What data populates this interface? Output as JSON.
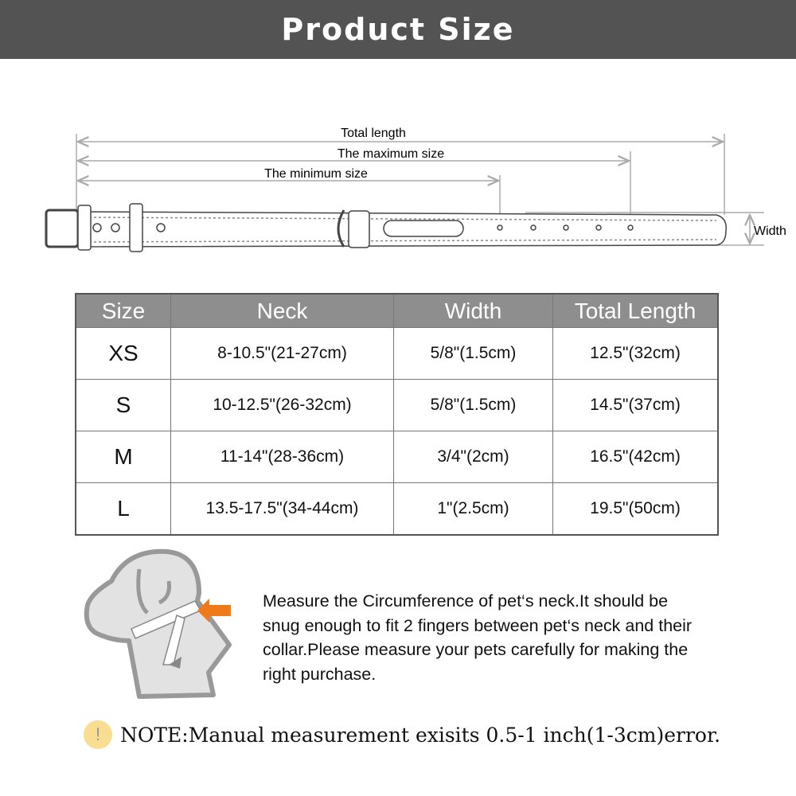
{
  "header": {
    "title": "Product Size"
  },
  "diagram": {
    "total_length": "Total length",
    "max_size": "The maximum size",
    "min_size": "The minimum size",
    "width": "Width"
  },
  "table": {
    "headers": [
      "Size",
      "Neck",
      "Width",
      "Total Length"
    ],
    "rows": [
      [
        "XS",
        "8-10.5\"(21-27cm)",
        "5/8\"(1.5cm)",
        "12.5\"(32cm)"
      ],
      [
        "S",
        "10-12.5\"(26-32cm)",
        "5/8\"(1.5cm)",
        "14.5\"(37cm)"
      ],
      [
        "M",
        "11-14\"(28-36cm)",
        "3/4\"(2cm)",
        "16.5\"(42cm)"
      ],
      [
        "L",
        "13.5-17.5\"(34-44cm)",
        "1\"(2.5cm)",
        "19.5\"(50cm)"
      ]
    ]
  },
  "instructions": "Measure the Circumference of pet‘s neck.It should be snug enough to fit 2 fingers between pet‘s neck and their collar.Please measure your pets carefully for making the right purchase.",
  "note": {
    "icon": "exclamation-icon",
    "text": "NOTE:Manual measurement exisits 0.5-1 inch(1-3cm)error."
  },
  "colors": {
    "header_bg": "#535353",
    "table_header_bg": "#8e8e8e",
    "arrow": "#f07a1a",
    "note_icon": "#f9dd90"
  }
}
